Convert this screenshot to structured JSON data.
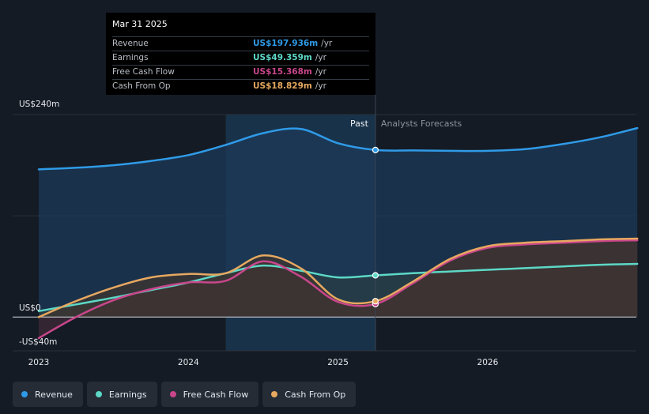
{
  "chart_data": {
    "type": "line",
    "x_ticks": [
      "2023",
      "2024",
      "2025",
      "2026"
    ],
    "y_ticks": [
      {
        "value": 240,
        "label": "US$240m"
      },
      {
        "value": 0,
        "label": "US$0"
      },
      {
        "value": -40,
        "label": "-US$40m"
      }
    ],
    "ylim": [
      -40,
      240
    ],
    "past_label": "Past",
    "forecast_label": "Analysts Forecasts",
    "highlight_start": 2024.25,
    "divider": 2025.25,
    "series": [
      {
        "name": "Revenue",
        "color": "#2f9be8",
        "fill": "#1c3a58",
        "points": [
          [
            2023.0,
            175
          ],
          [
            2023.25,
            177
          ],
          [
            2023.5,
            180
          ],
          [
            2023.75,
            185
          ],
          [
            2024.0,
            192
          ],
          [
            2024.25,
            204
          ],
          [
            2024.5,
            218
          ],
          [
            2024.75,
            223
          ],
          [
            2025.0,
            206
          ],
          [
            2025.25,
            198
          ],
          [
            2025.5,
            197.5
          ],
          [
            2025.75,
            197
          ],
          [
            2026.0,
            197
          ],
          [
            2026.25,
            199
          ],
          [
            2026.5,
            205
          ],
          [
            2026.75,
            213
          ],
          [
            2027.0,
            224
          ]
        ]
      },
      {
        "name": "Earnings",
        "color": "#5dd8c6",
        "fill": "#2a3f44",
        "points": [
          [
            2023.0,
            7
          ],
          [
            2023.25,
            15
          ],
          [
            2023.5,
            23
          ],
          [
            2023.75,
            32
          ],
          [
            2024.0,
            41
          ],
          [
            2024.25,
            52
          ],
          [
            2024.5,
            61
          ],
          [
            2024.75,
            55
          ],
          [
            2025.0,
            47
          ],
          [
            2025.25,
            49.4
          ],
          [
            2025.5,
            52
          ],
          [
            2025.75,
            54
          ],
          [
            2026.0,
            56
          ],
          [
            2026.25,
            58
          ],
          [
            2026.5,
            60
          ],
          [
            2026.75,
            62
          ],
          [
            2027.0,
            63
          ]
        ]
      },
      {
        "name": "Free Cash Flow",
        "color": "#c9468b",
        "fill": "#3f2a38",
        "points": [
          [
            2023.0,
            -25
          ],
          [
            2023.25,
            0
          ],
          [
            2023.5,
            20
          ],
          [
            2023.75,
            33
          ],
          [
            2024.0,
            41
          ],
          [
            2024.25,
            43
          ],
          [
            2024.5,
            66
          ],
          [
            2024.75,
            48
          ],
          [
            2025.0,
            18
          ],
          [
            2025.25,
            15.4
          ],
          [
            2025.5,
            40
          ],
          [
            2025.75,
            67
          ],
          [
            2026.0,
            82
          ],
          [
            2026.25,
            86
          ],
          [
            2026.5,
            88
          ],
          [
            2026.75,
            90
          ],
          [
            2027.0,
            91
          ]
        ]
      },
      {
        "name": "Cash From Op",
        "color": "#e7a860",
        "fill": "#3d3530",
        "points": [
          [
            2023.0,
            0
          ],
          [
            2023.25,
            19
          ],
          [
            2023.5,
            35
          ],
          [
            2023.75,
            47
          ],
          [
            2024.0,
            51
          ],
          [
            2024.25,
            52
          ],
          [
            2024.5,
            73
          ],
          [
            2024.75,
            58
          ],
          [
            2025.0,
            21
          ],
          [
            2025.25,
            18.8
          ],
          [
            2025.5,
            42
          ],
          [
            2025.75,
            69
          ],
          [
            2026.0,
            84
          ],
          [
            2026.25,
            88
          ],
          [
            2026.5,
            90
          ],
          [
            2026.75,
            92
          ],
          [
            2027.0,
            93
          ]
        ]
      }
    ],
    "tooltip": {
      "date": "Mar 31 2025",
      "rows": [
        {
          "label": "Revenue",
          "value": "US$197.936m",
          "unit": "/yr",
          "color": "#2f9be8"
        },
        {
          "label": "Earnings",
          "value": "US$49.359m",
          "unit": "/yr",
          "color": "#5dd8c6"
        },
        {
          "label": "Free Cash Flow",
          "value": "US$15.368m",
          "unit": "/yr",
          "color": "#c9468b"
        },
        {
          "label": "Cash From Op",
          "value": "US$18.829m",
          "unit": "/yr",
          "color": "#e7a860"
        }
      ]
    },
    "legend": [
      {
        "label": "Revenue",
        "color": "#2f9be8"
      },
      {
        "label": "Earnings",
        "color": "#5dd8c6"
      },
      {
        "label": "Free Cash Flow",
        "color": "#c9468b"
      },
      {
        "label": "Cash From Op",
        "color": "#e7a860"
      }
    ]
  }
}
